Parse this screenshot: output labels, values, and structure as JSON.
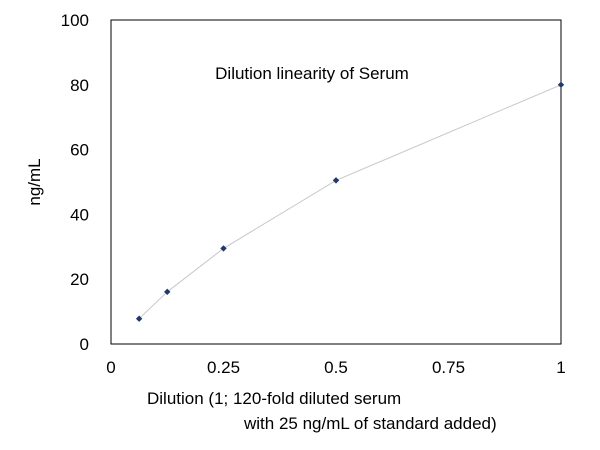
{
  "chart_data": {
    "type": "scatter",
    "title": "Dilution linearity of Serum",
    "xlabel_lines": [
      "Dilution (1; 120-fold diluted serum",
      "with 25 ng/mL of standard added)"
    ],
    "ylabel": "ng/mL",
    "xlim": [
      0,
      1
    ],
    "ylim": [
      0,
      100
    ],
    "x_ticks": [
      0,
      0.25,
      0.5,
      0.75,
      1
    ],
    "x_tick_labels": [
      "0",
      "0.25",
      "0.5",
      "0.75",
      "1"
    ],
    "y_ticks": [
      0,
      20,
      40,
      60,
      80,
      100
    ],
    "y_tick_labels": [
      "0",
      "20",
      "40",
      "60",
      "80",
      "100"
    ],
    "grid": false,
    "series": [
      {
        "x": [
          0.0625,
          0.125,
          0.25,
          0.5,
          1
        ],
        "y": [
          7.8,
          16.1,
          29.5,
          50.5,
          80
        ],
        "color": "#1f3a6b",
        "line_color": "#c8c8c8",
        "marker": "diamond"
      }
    ]
  }
}
